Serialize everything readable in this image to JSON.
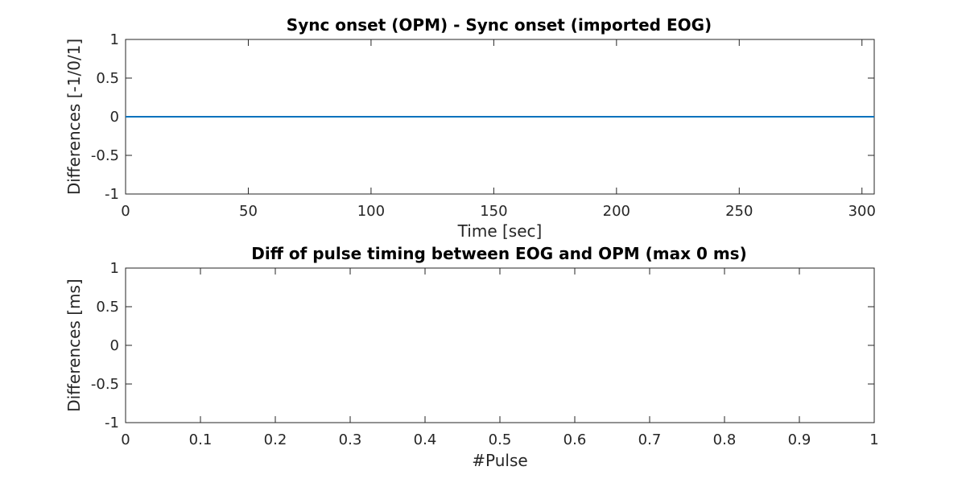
{
  "chart_data": [
    {
      "type": "line",
      "title": "Sync onset (OPM) - Sync onset (imported EOG)",
      "xlabel": "Time [sec]",
      "ylabel": "Differences [-1/0/1]",
      "xlim": [
        0,
        305
      ],
      "ylim": [
        -1,
        1
      ],
      "xticks": [
        "0",
        "50",
        "100",
        "150",
        "200",
        "250",
        "300"
      ],
      "yticks": [
        "1",
        "0.5",
        "0",
        "-0.5",
        "-1"
      ],
      "grid": false,
      "series": [
        {
          "color": "#0072BD",
          "x": [
            0,
            305
          ],
          "y": [
            0,
            0
          ]
        }
      ]
    },
    {
      "type": "line",
      "title": "Diff of pulse timing between EOG and OPM (max 0 ms)",
      "xlabel": "#Pulse",
      "ylabel": "Differences [ms]",
      "xlim": [
        0,
        1
      ],
      "ylim": [
        -1,
        1
      ],
      "xticks": [
        "0",
        "0.1",
        "0.2",
        "0.3",
        "0.4",
        "0.5",
        "0.6",
        "0.7",
        "0.8",
        "0.9",
        "1"
      ],
      "yticks": [
        "1",
        "0.5",
        "0",
        "-0.5",
        "-1"
      ],
      "grid": false,
      "series": []
    }
  ]
}
